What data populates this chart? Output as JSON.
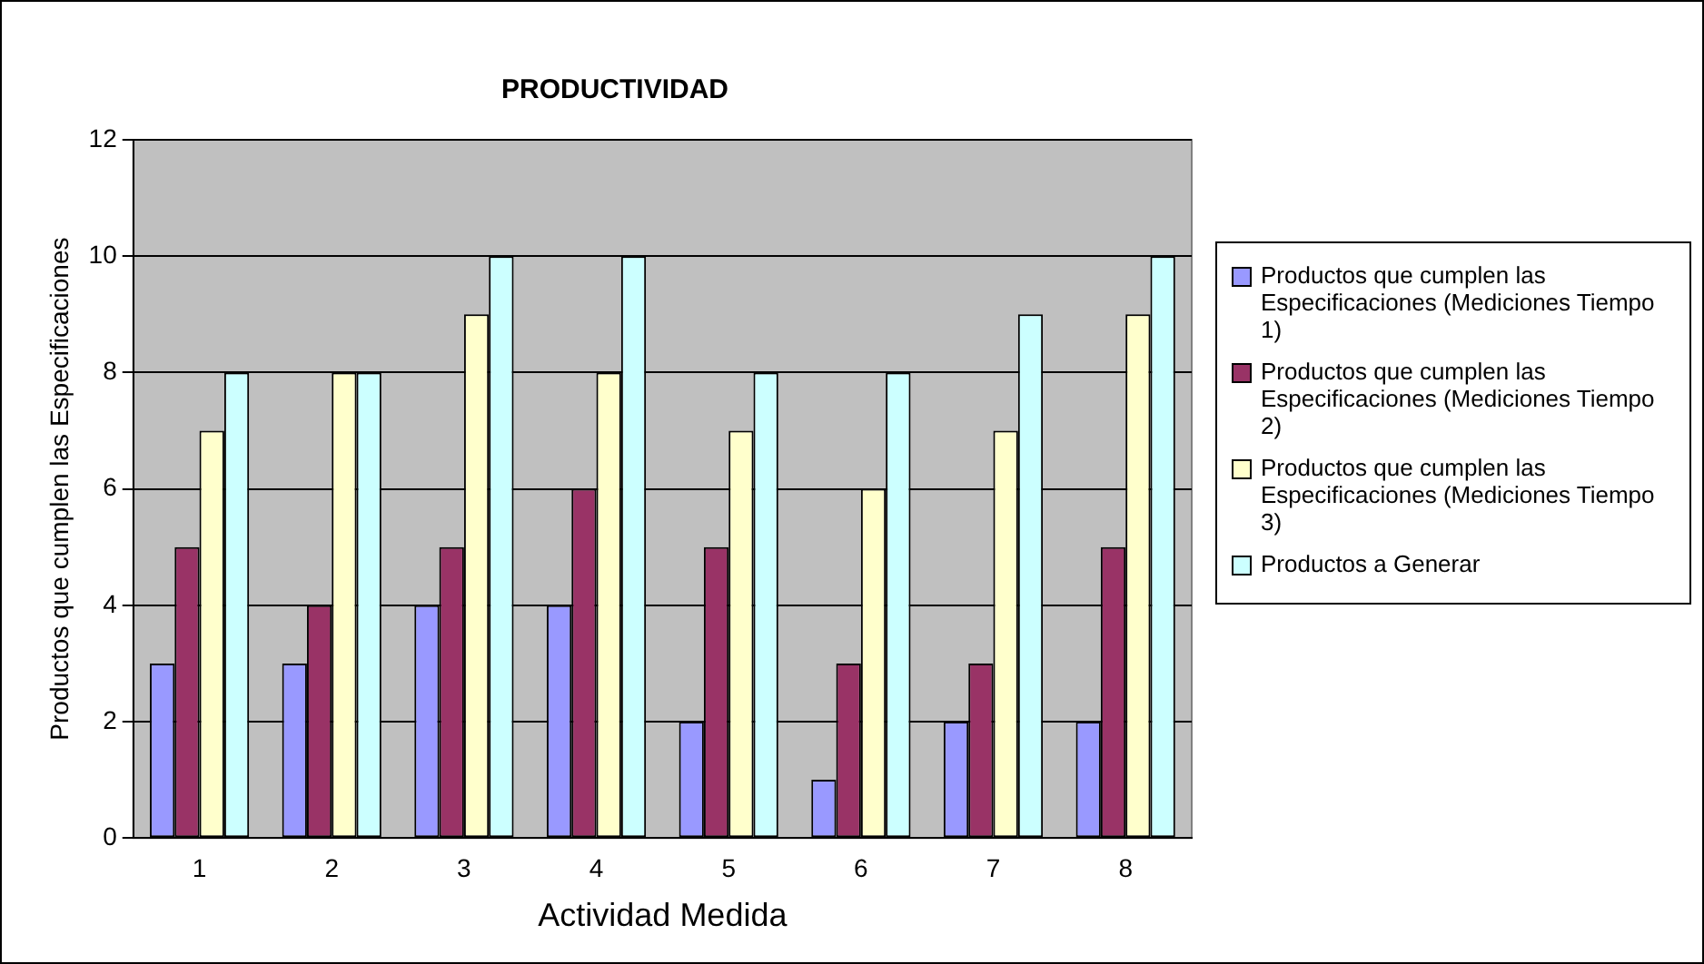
{
  "chart_data": {
    "type": "bar",
    "title": "PRODUCTIVIDAD",
    "xlabel": "Actividad Medida",
    "ylabel": "Productos que cumplen las Especificaciones",
    "categories": [
      "1",
      "2",
      "3",
      "4",
      "5",
      "6",
      "7",
      "8"
    ],
    "series": [
      {
        "name": "Productos que cumplen las Especificaciones (Mediciones Tiempo 1)",
        "color": "#9999ff",
        "values": [
          3,
          3,
          4,
          4,
          2,
          1,
          2,
          2
        ]
      },
      {
        "name": "Productos que cumplen las Especificaciones (Mediciones Tiempo 2)",
        "color": "#993366",
        "values": [
          5,
          4,
          5,
          6,
          5,
          3,
          3,
          5
        ]
      },
      {
        "name": "Productos que cumplen las Especificaciones (Mediciones Tiempo 3)",
        "color": "#ffffcc",
        "values": [
          7,
          8,
          9,
          8,
          7,
          6,
          7,
          9
        ]
      },
      {
        "name": "Productos a Generar",
        "color": "#ccffff",
        "values": [
          8,
          8,
          10,
          10,
          8,
          8,
          9,
          10
        ]
      }
    ],
    "ylim": [
      0,
      12
    ],
    "yticks": [
      0,
      2,
      4,
      6,
      8,
      10,
      12
    ],
    "grid": "y",
    "legend": "right"
  }
}
